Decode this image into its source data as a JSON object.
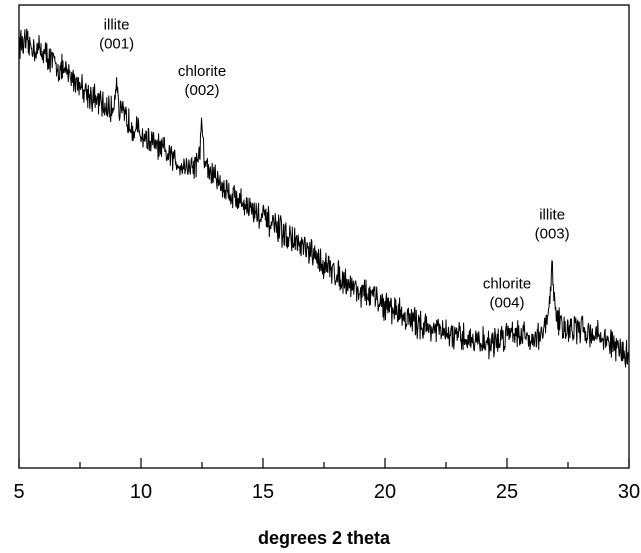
{
  "chart_data": {
    "type": "line",
    "title": "",
    "xlabel": "degrees 2 theta",
    "ylabel": "",
    "xlim": [
      5,
      30
    ],
    "ylim": [
      0,
      100
    ],
    "x_ticks": [
      "5",
      "10",
      "15",
      "20",
      "25",
      "30"
    ],
    "grid": false,
    "y_tick_labels_visible": false,
    "line_color": "#000000",
    "series": [
      {
        "x": [
          5,
          5.5,
          6,
          6.5,
          7,
          7.5,
          8,
          8.5,
          8.8,
          8.95,
          9.0,
          9.1,
          9.3,
          9.5,
          10,
          10.5,
          11,
          11.5,
          12,
          12.3,
          12.45,
          12.5,
          12.6,
          12.8,
          13,
          13.5,
          14,
          14.5,
          15,
          15.5,
          16,
          16.5,
          17,
          17.5,
          18,
          18.5,
          19,
          19.5,
          20,
          20.5,
          21,
          21.5,
          22,
          22.5,
          23,
          23.5,
          24,
          24.5,
          25,
          25.2,
          25.5,
          26,
          26.5,
          26.7,
          26.8,
          26.85,
          26.9,
          27.0,
          27.2,
          27.5,
          28,
          28.5,
          29,
          29.5,
          30
        ],
        "y": [
          92,
          91,
          90,
          87,
          85,
          83,
          80,
          78,
          77,
          81,
          85,
          77,
          76,
          75,
          72,
          70,
          68,
          66,
          65,
          66,
          70,
          75,
          66,
          64,
          63,
          60,
          58,
          56,
          54,
          52,
          50,
          48,
          46,
          44,
          42,
          40,
          38,
          37,
          35,
          34,
          32,
          31,
          30,
          29,
          28,
          28,
          27,
          27,
          29,
          30,
          29,
          28,
          29,
          33,
          39,
          44,
          40,
          33,
          31,
          30,
          30,
          29,
          28,
          26,
          24
        ]
      }
    ],
    "annotations": [
      {
        "line1": "illite",
        "line2": "(001)",
        "x": 9.0
      },
      {
        "line1": "chlorite",
        "line2": "(002)",
        "x": 12.5
      },
      {
        "line1": "chlorite",
        "line2": "(004)",
        "x": 25.0
      },
      {
        "line1": "illite",
        "line2": "(003)",
        "x": 26.85
      }
    ]
  }
}
